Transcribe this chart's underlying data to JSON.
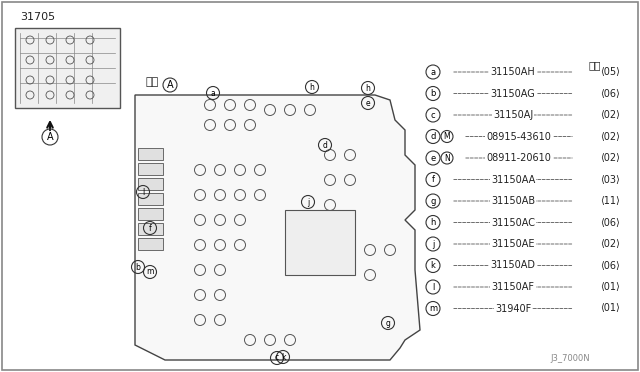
{
  "title": "31705",
  "view_label": "矢視",
  "view_circle": "A",
  "footer": "J3_7000N",
  "background_color": "#ffffff",
  "border_color": "#000000",
  "parts_header": "数量",
  "parts": [
    {
      "label": "a",
      "part_no": "31150AH",
      "qty": "05"
    },
    {
      "label": "b",
      "part_no": "31150AG",
      "qty": "06"
    },
    {
      "label": "c",
      "part_no": "31150AJ",
      "qty": "02"
    },
    {
      "label": "d",
      "part_no": "08915-43610",
      "qty": "02",
      "note": "M"
    },
    {
      "label": "e",
      "part_no": "08911-20610",
      "qty": "02",
      "note": "N"
    },
    {
      "label": "f",
      "part_no": "31150AA",
      "qty": "03"
    },
    {
      "label": "g",
      "part_no": "31150AB",
      "qty": "11"
    },
    {
      "label": "h",
      "part_no": "31150AC",
      "qty": "06"
    },
    {
      "label": "j",
      "part_no": "31150AE",
      "qty": "02"
    },
    {
      "label": "k",
      "part_no": "31150AD",
      "qty": "06"
    },
    {
      "label": "l",
      "part_no": "31150AF",
      "qty": "01"
    },
    {
      "label": "m",
      "part_no": "31940F",
      "qty": "01"
    }
  ],
  "line_color": "#555555",
  "text_color": "#222222",
  "circle_label_color": "#000000"
}
